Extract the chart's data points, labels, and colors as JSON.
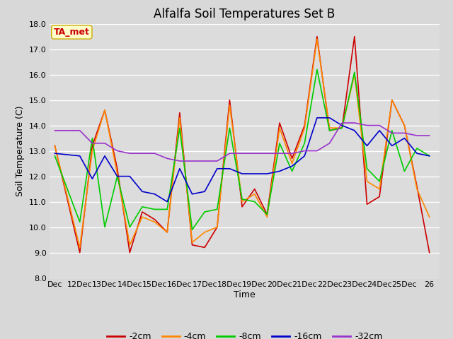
{
  "title": "Alfalfa Soil Temperatures Set B",
  "xlabel": "Time",
  "ylabel": "Soil Temperature (C)",
  "annotation": "TA_met",
  "ylim": [
    8.0,
    18.0
  ],
  "yticks": [
    8.0,
    9.0,
    10.0,
    11.0,
    12.0,
    13.0,
    14.0,
    15.0,
    16.0,
    17.0,
    18.0
  ],
  "x_labels": [
    "Dec",
    "12Dec",
    "13Dec",
    "14Dec",
    "15Dec",
    "16Dec",
    "17Dec",
    "18Dec",
    "19Dec",
    "20Dec",
    "21Dec",
    "22Dec",
    "23Dec",
    "24Dec",
    "25Dec",
    "26"
  ],
  "series": {
    "-2cm": {
      "color": "#cc0000",
      "data_x": [
        11,
        12,
        12.5,
        13,
        13.5,
        14,
        14.5,
        15,
        15.5,
        16,
        16.5,
        17,
        17.5,
        18,
        18.5,
        19,
        19.5,
        20,
        20.5,
        21,
        21.5,
        22,
        22.5,
        23,
        23.5,
        24,
        24.5,
        25,
        25.5,
        26
      ],
      "data_y": [
        13.2,
        9.0,
        13.2,
        14.6,
        12.3,
        9.0,
        10.6,
        10.3,
        9.8,
        14.5,
        9.3,
        9.2,
        10.0,
        15.0,
        10.8,
        11.5,
        10.5,
        14.1,
        12.7,
        14.0,
        17.5,
        13.8,
        13.9,
        17.5,
        10.9,
        11.2,
        15.0,
        14.0,
        11.6,
        9.0
      ]
    },
    "-4cm": {
      "color": "#ff8800",
      "data_x": [
        11,
        12,
        12.5,
        13,
        13.5,
        14,
        14.5,
        15,
        15.5,
        16,
        16.5,
        17,
        17.5,
        18,
        18.5,
        19,
        19.5,
        20,
        20.5,
        21,
        21.5,
        22,
        22.5,
        23,
        23.5,
        24,
        24.5,
        25,
        25.5,
        26
      ],
      "data_y": [
        13.2,
        9.2,
        13.0,
        14.6,
        12.1,
        9.3,
        10.4,
        10.2,
        9.8,
        14.3,
        9.4,
        9.8,
        10.0,
        14.8,
        11.0,
        11.3,
        10.4,
        13.9,
        12.5,
        13.9,
        17.4,
        13.9,
        13.9,
        16.0,
        11.8,
        11.5,
        15.0,
        14.0,
        11.5,
        10.4
      ]
    },
    "-8cm": {
      "color": "#00cc00",
      "data_x": [
        11,
        12,
        12.5,
        13,
        13.5,
        14,
        14.5,
        15,
        15.5,
        16,
        16.5,
        17,
        17.5,
        18,
        18.5,
        19,
        19.5,
        20,
        20.5,
        21,
        21.5,
        22,
        22.5,
        23,
        23.5,
        24,
        24.5,
        25,
        25.5,
        26
      ],
      "data_y": [
        12.8,
        10.2,
        13.5,
        10.0,
        12.0,
        10.0,
        10.8,
        10.7,
        10.7,
        13.9,
        9.9,
        10.6,
        10.7,
        13.9,
        11.1,
        11.0,
        10.5,
        13.3,
        12.2,
        13.3,
        16.2,
        13.8,
        13.9,
        16.1,
        12.3,
        11.8,
        13.8,
        12.2,
        13.1,
        12.8
      ]
    },
    "-16cm": {
      "color": "#0000cc",
      "data_x": [
        11,
        12,
        12.5,
        13,
        13.5,
        14,
        14.5,
        15,
        15.5,
        16,
        16.5,
        17,
        17.5,
        18,
        18.5,
        19,
        19.5,
        20,
        20.5,
        21,
        21.5,
        22,
        22.5,
        23,
        23.5,
        24,
        24.5,
        25,
        25.5,
        26
      ],
      "data_y": [
        12.9,
        12.8,
        11.9,
        12.8,
        12.0,
        12.0,
        11.4,
        11.3,
        11.0,
        12.3,
        11.3,
        11.4,
        12.3,
        12.3,
        12.1,
        12.1,
        12.1,
        12.2,
        12.4,
        12.8,
        14.3,
        14.3,
        14.0,
        13.8,
        13.2,
        13.8,
        13.2,
        13.5,
        12.9,
        12.8
      ]
    },
    "-32cm": {
      "color": "#9933cc",
      "data_x": [
        11,
        12,
        12.5,
        13,
        13.5,
        14,
        14.5,
        15,
        15.5,
        16,
        16.5,
        17,
        17.5,
        18,
        18.5,
        19,
        19.5,
        20,
        20.5,
        21,
        21.5,
        22,
        22.5,
        23,
        23.5,
        24,
        24.5,
        25,
        25.5,
        26
      ],
      "data_y": [
        13.8,
        13.8,
        13.3,
        13.3,
        13.0,
        12.9,
        12.9,
        12.9,
        12.7,
        12.6,
        12.6,
        12.6,
        12.6,
        12.9,
        12.9,
        12.9,
        12.9,
        12.9,
        12.9,
        13.0,
        13.0,
        13.3,
        14.1,
        14.1,
        14.0,
        14.0,
        13.7,
        13.7,
        13.6,
        13.6
      ]
    }
  },
  "fig_bg_color": "#d8d8d8",
  "plot_bg": "#dcdcdc",
  "annotation_bg": "#ffffcc",
  "annotation_color": "#cc0000",
  "annotation_border": "#ccaa00",
  "title_fontsize": 12,
  "axis_label_fontsize": 9,
  "tick_fontsize": 8,
  "legend_fontsize": 9
}
